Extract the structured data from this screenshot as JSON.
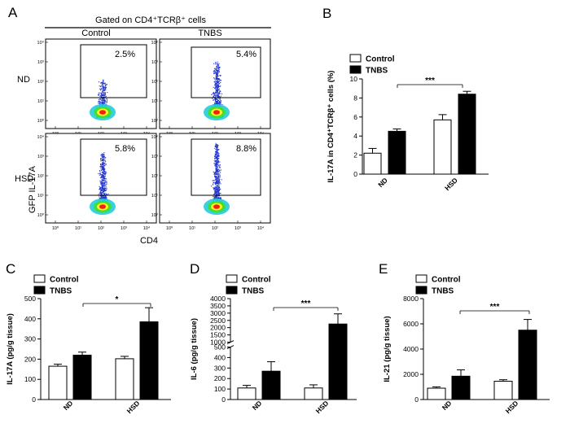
{
  "colors": {
    "control_fill": "#ffffff",
    "tnbs_fill": "#000000",
    "flow_dots": "#2233cc"
  },
  "panel_a": {
    "letter": "A",
    "header": "Gated on CD4⁺TCRβ⁺ cells",
    "col_labels": [
      "Control",
      "TNBS"
    ],
    "row_labels": [
      "ND",
      "HSD"
    ],
    "percents": [
      "2.5%",
      "5.4%",
      "5.8%",
      "8.8%"
    ],
    "x_axis": "CD4",
    "y_axis": "GFP IL-17A",
    "tick_labels": [
      "10⁰",
      "10¹",
      "10²",
      "10³",
      "10⁴"
    ]
  },
  "chart_data": [
    {
      "id": "B",
      "letter": "B",
      "type": "bar",
      "ylabel": "IL-17A in CD4⁺TCRβ⁺ cells (%)",
      "categories": [
        "ND",
        "HSD"
      ],
      "series": [
        {
          "name": "Control",
          "values": [
            2.2,
            5.7
          ],
          "errors": [
            0.5,
            0.55
          ]
        },
        {
          "name": "TNBS",
          "values": [
            4.5,
            8.4
          ],
          "errors": [
            0.25,
            0.3
          ]
        }
      ],
      "ylim": [
        0,
        10
      ],
      "yticks": [
        0,
        2,
        4,
        6,
        8,
        10
      ],
      "significance": "***",
      "legend": [
        "Control",
        "TNBS"
      ]
    },
    {
      "id": "C",
      "letter": "C",
      "type": "bar",
      "ylabel": "IL-17A (pg/g tissue)",
      "categories": [
        "ND",
        "HSD"
      ],
      "series": [
        {
          "name": "Control",
          "values": [
            165,
            202
          ],
          "errors": [
            10,
            12
          ]
        },
        {
          "name": "TNBS",
          "values": [
            220,
            385
          ],
          "errors": [
            15,
            70
          ]
        }
      ],
      "ylim": [
        0,
        500
      ],
      "yticks": [
        0,
        100,
        200,
        300,
        400,
        500
      ],
      "significance": "*",
      "legend": [
        "Control",
        "TNBS"
      ]
    },
    {
      "id": "D",
      "letter": "D",
      "type": "bar",
      "ylabel": "IL-6 (pg/g tissue)",
      "categories": [
        "ND",
        "HSD"
      ],
      "series": [
        {
          "name": "Control",
          "values": [
            110,
            110
          ],
          "errors": [
            25,
            30
          ]
        },
        {
          "name": "TNBS",
          "values": [
            270,
            2250
          ],
          "errors": [
            90,
            700
          ]
        }
      ],
      "ylim": [
        0,
        4000
      ],
      "yticks": [
        0,
        100,
        200,
        300,
        400,
        500,
        1000,
        1500,
        2000,
        2500,
        3000,
        3500,
        4000
      ],
      "axis_break": [
        500,
        1000
      ],
      "significance": "***",
      "legend": [
        "Control",
        "TNBS"
      ]
    },
    {
      "id": "E",
      "letter": "E",
      "type": "bar",
      "ylabel": "IL-21 (pg/g tissue)",
      "categories": [
        "ND",
        "HSD"
      ],
      "series": [
        {
          "name": "Control",
          "values": [
            900,
            1450
          ],
          "errors": [
            100,
            120
          ]
        },
        {
          "name": "TNBS",
          "values": [
            1850,
            5500
          ],
          "errors": [
            500,
            850
          ]
        }
      ],
      "ylim": [
        0,
        8000
      ],
      "yticks": [
        0,
        2000,
        4000,
        6000,
        8000
      ],
      "significance": "***",
      "legend": [
        "Control",
        "TNBS"
      ]
    }
  ]
}
